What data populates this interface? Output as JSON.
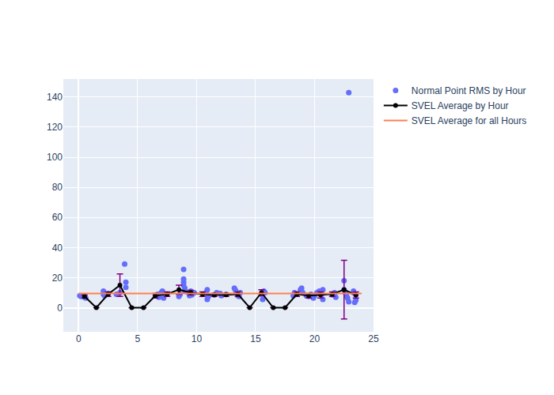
{
  "chart_data": {
    "type": "scatter",
    "xlim": [
      -1.3,
      25
    ],
    "xticks": [
      0,
      5,
      10,
      15,
      20,
      25
    ],
    "ylim": [
      -16,
      152
    ],
    "yticks": [
      0,
      20,
      40,
      60,
      80,
      100,
      120,
      140
    ],
    "grid": true,
    "legend": "top right",
    "series": [
      {
        "name": "Normal Point RMS by Hour",
        "type": "scatter",
        "marker": "circle",
        "color": "#636efa",
        "x": [
          0.1,
          0.2,
          0.5,
          0.6,
          2.1,
          2.1,
          2.2,
          2.5,
          3.2,
          3.5,
          3.9,
          4.0,
          4.0,
          6.5,
          6.7,
          6.8,
          7.0,
          7.1,
          7.2,
          7.5,
          8.5,
          8.6,
          8.9,
          8.9,
          8.9,
          8.9,
          9.0,
          9.0,
          9.3,
          9.4,
          9.5,
          9.6,
          9.8,
          10.8,
          10.9,
          10.9,
          11.0,
          11.5,
          11.7,
          12.0,
          12.1,
          12.5,
          13.2,
          13.3,
          13.5,
          13.6,
          13.7,
          15.5,
          15.6,
          15.7,
          15.8,
          18.2,
          18.3,
          18.5,
          18.8,
          18.9,
          19.0,
          19.3,
          19.5,
          19.7,
          19.9,
          20.0,
          20.2,
          20.4,
          20.6,
          20.7,
          20.7,
          21.5,
          21.7,
          21.8,
          22.5,
          22.5,
          22.6,
          22.7,
          22.8,
          22.9,
          22.9,
          23.3,
          23.4,
          23.5,
          23.5,
          23.3
        ],
        "values": [
          8,
          7.5,
          7,
          6.5,
          11,
          9,
          8,
          9.5,
          9,
          10,
          29,
          17,
          13.5,
          8,
          9,
          7,
          10,
          11,
          6.5,
          9,
          7.5,
          9,
          25.5,
          19,
          17,
          15,
          13,
          11,
          10,
          8,
          11,
          8.5,
          10,
          10,
          12,
          5.5,
          7.5,
          8.5,
          10,
          9.5,
          8,
          9,
          13,
          11.5,
          8,
          7.5,
          10,
          9,
          5.5,
          11,
          10,
          8,
          10,
          9,
          12,
          13,
          10,
          8,
          7.5,
          9,
          6.5,
          8,
          10,
          11,
          9,
          12,
          5.5,
          8.5,
          10,
          7,
          18,
          12,
          10,
          8,
          6.5,
          143,
          4,
          11,
          3.5,
          5,
          8.5,
          10
        ]
      },
      {
        "name": "SVEL Average by Hour",
        "type": "line",
        "marker": "circle",
        "line_style": "solid",
        "color": "#000000",
        "x": [
          0.5,
          1.5,
          2.5,
          3.5,
          4.5,
          5.5,
          6.5,
          7.5,
          8.5,
          9.5,
          10.5,
          11.5,
          12.5,
          13.5,
          14.5,
          15.5,
          16.5,
          17.5,
          18.5,
          19.5,
          20.5,
          21.5,
          22.5,
          23.5
        ],
        "values": [
          7.5,
          0,
          9,
          15,
          0,
          0,
          8,
          9,
          12,
          10,
          9,
          8.5,
          8.5,
          9,
          0,
          10,
          0,
          0,
          9,
          8,
          8.5,
          9,
          12,
          8.5
        ],
        "errors": [
          1,
          0,
          1.5,
          7.5,
          0,
          0,
          1.5,
          1.5,
          3,
          1.5,
          1.5,
          1,
          1,
          1.5,
          0,
          2,
          0,
          0,
          1.5,
          1.5,
          2,
          1.5,
          19.5,
          2
        ]
      },
      {
        "name": "SVEL Average for all Hours",
        "type": "line",
        "line_style": "solid",
        "color": "#ff7f50",
        "x": [
          0,
          24
        ],
        "values": [
          9.5,
          9.5
        ]
      }
    ]
  }
}
